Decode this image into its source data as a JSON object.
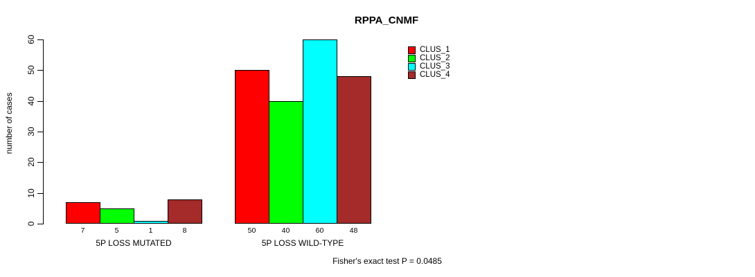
{
  "chart_data": {
    "type": "bar",
    "title": "RPPA_CNMF",
    "xlabel": "",
    "ylabel": "number of cases",
    "ylim": [
      0,
      60
    ],
    "yticks": [
      0,
      10,
      20,
      30,
      40,
      50,
      60
    ],
    "categories": [
      "5P LOSS MUTATED",
      "5P LOSS WILD-TYPE"
    ],
    "series": [
      {
        "name": "CLUS_1",
        "color": "#FF0000",
        "values": [
          7,
          50
        ]
      },
      {
        "name": "CLUS_2",
        "color": "#00FF00",
        "values": [
          5,
          40
        ]
      },
      {
        "name": "CLUS_3",
        "color": "#00FFFF",
        "values": [
          1,
          60
        ]
      },
      {
        "name": "CLUS_4",
        "color": "#A52A2A",
        "values": [
          8,
          48
        ]
      }
    ],
    "bar_value_labels": [
      [
        7,
        5,
        1,
        8
      ],
      [
        50,
        40,
        60,
        48
      ]
    ],
    "legend_position": "top-right",
    "grid": false,
    "annotation": "Fisher's exact test P = 0.0485"
  }
}
